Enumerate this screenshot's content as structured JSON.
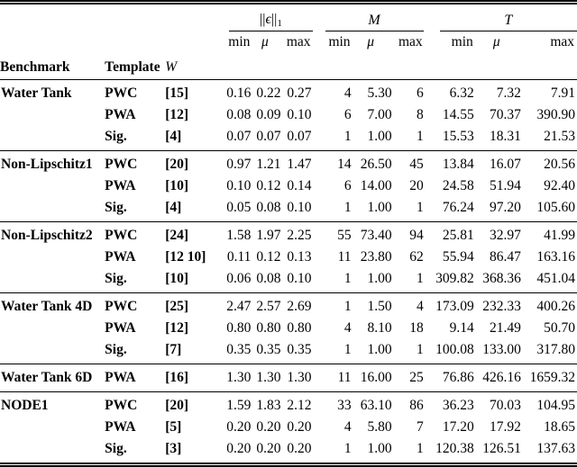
{
  "header": {
    "benchmark": "Benchmark",
    "template": "Template",
    "w": "W",
    "norm": {
      "pre": "||",
      "sym": "ϵ",
      "post": "||",
      "sub": "1"
    },
    "m": "M",
    "t": "T",
    "sub": {
      "min": "min",
      "mu": "μ",
      "max": "max"
    }
  },
  "table": {
    "groups": [
      {
        "benchmark": "Water Tank",
        "rows": [
          {
            "template": "PWC",
            "w": "[15]",
            "values": [
              "0.16",
              "0.22",
              "0.27",
              "4",
              "5.30",
              "6",
              "6.32",
              "7.32",
              "7.91"
            ]
          },
          {
            "template": "PWA",
            "w": "[12]",
            "values": [
              "0.08",
              "0.09",
              "0.10",
              "6",
              "7.00",
              "8",
              "14.55",
              "70.37",
              "390.90"
            ]
          },
          {
            "template": "Sig.",
            "w": "[4]",
            "values": [
              "0.07",
              "0.07",
              "0.07",
              "1",
              "1.00",
              "1",
              "15.53",
              "18.31",
              "21.53"
            ]
          }
        ]
      },
      {
        "benchmark": "Non-Lipschitz1",
        "rows": [
          {
            "template": "PWC",
            "w": "[20]",
            "values": [
              "0.97",
              "1.21",
              "1.47",
              "14",
              "26.50",
              "45",
              "13.84",
              "16.07",
              "20.56"
            ]
          },
          {
            "template": "PWA",
            "w": "[10]",
            "values": [
              "0.10",
              "0.12",
              "0.14",
              "6",
              "14.00",
              "20",
              "24.58",
              "51.94",
              "92.40"
            ]
          },
          {
            "template": "Sig.",
            "w": "[4]",
            "values": [
              "0.05",
              "0.08",
              "0.10",
              "1",
              "1.00",
              "1",
              "76.24",
              "97.20",
              "105.60"
            ]
          }
        ]
      },
      {
        "benchmark": "Non-Lipschitz2",
        "rows": [
          {
            "template": "PWC",
            "w": "[24]",
            "values": [
              "1.58",
              "1.97",
              "2.25",
              "55",
              "73.40",
              "94",
              "25.81",
              "32.97",
              "41.99"
            ]
          },
          {
            "template": "PWA",
            "w": "[12 10]",
            "values": [
              "0.11",
              "0.12",
              "0.13",
              "11",
              "23.80",
              "62",
              "55.94",
              "86.47",
              "163.16"
            ]
          },
          {
            "template": "Sig.",
            "w": "[10]",
            "values": [
              "0.06",
              "0.08",
              "0.10",
              "1",
              "1.00",
              "1",
              "309.82",
              "368.36",
              "451.04"
            ]
          }
        ]
      },
      {
        "benchmark": "Water Tank 4D",
        "rows": [
          {
            "template": "PWC",
            "w": "[25]",
            "values": [
              "2.47",
              "2.57",
              "2.69",
              "1",
              "1.50",
              "4",
              "173.09",
              "232.33",
              "400.26"
            ]
          },
          {
            "template": "PWA",
            "w": "[12]",
            "values": [
              "0.80",
              "0.80",
              "0.80",
              "4",
              "8.10",
              "18",
              "9.14",
              "21.49",
              "50.70"
            ]
          },
          {
            "template": "Sig.",
            "w": "[7]",
            "values": [
              "0.35",
              "0.35",
              "0.35",
              "1",
              "1.00",
              "1",
              "100.08",
              "133.00",
              "317.80"
            ]
          }
        ]
      },
      {
        "benchmark": "Water Tank 6D",
        "rows": [
          {
            "template": "PWA",
            "w": "[16]",
            "values": [
              "1.30",
              "1.30",
              "1.30",
              "11",
              "16.00",
              "25",
              "76.86",
              "426.16",
              "1659.32"
            ]
          }
        ]
      },
      {
        "benchmark": "NODE1",
        "rows": [
          {
            "template": "PWC",
            "w": "[20]",
            "values": [
              "1.59",
              "1.83",
              "2.12",
              "33",
              "63.10",
              "86",
              "36.23",
              "70.03",
              "104.95"
            ]
          },
          {
            "template": "PWA",
            "w": "[5]",
            "values": [
              "0.20",
              "0.20",
              "0.20",
              "4",
              "5.80",
              "7",
              "17.20",
              "17.92",
              "18.65"
            ]
          },
          {
            "template": "Sig.",
            "w": "[3]",
            "values": [
              "0.20",
              "0.20",
              "0.20",
              "1",
              "1.00",
              "1",
              "120.38",
              "126.51",
              "137.63"
            ]
          }
        ]
      }
    ]
  }
}
